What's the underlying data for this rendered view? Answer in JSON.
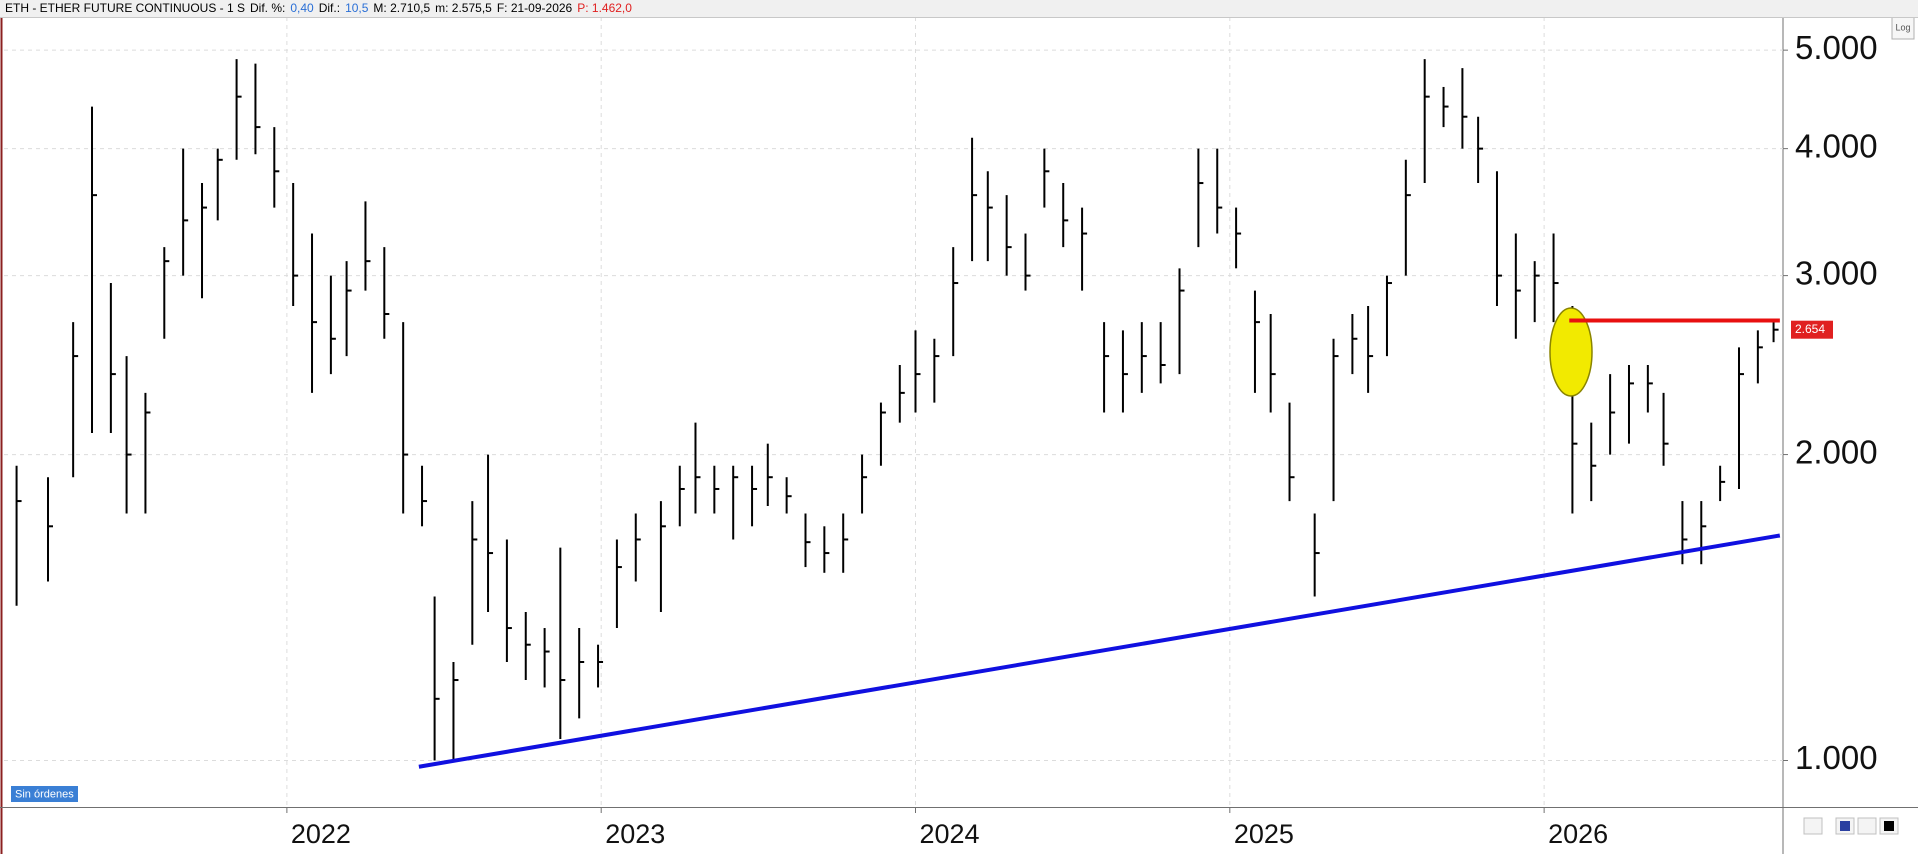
{
  "chart_data": {
    "type": "ohlc",
    "header": [
      {
        "text": "ETH - ETHER FUTURE CONTINUOUS -  1 S",
        "color": "#000000"
      },
      {
        "text": "Dif. %:",
        "color": "#000000"
      },
      {
        "text": "0,40",
        "color": "#2a6fd6"
      },
      {
        "text": "Dif.:",
        "color": "#000000"
      },
      {
        "text": "10,5",
        "color": "#2a6fd6"
      },
      {
        "text": "M: 2.710,5",
        "color": "#000000"
      },
      {
        "text": "m: 2.575,5",
        "color": "#000000"
      },
      {
        "text": "F: 21-09-2026",
        "color": "#000000"
      },
      {
        "text": "P: 1.462,0",
        "color": "#e02020"
      }
    ],
    "scale_label": "Log",
    "orders_label": "Sin órdenes",
    "log_scale": true,
    "grid": true,
    "color": "#000000",
    "xlim": [
      2021.1,
      2026.76
    ],
    "xticks": [
      2022,
      2023,
      2024,
      2025,
      2026
    ],
    "ylim": [
      900,
      5390
    ],
    "yticks": [
      {
        "value": 1000,
        "label": "1.000"
      },
      {
        "value": 2000,
        "label": "2.000"
      },
      {
        "value": 3000,
        "label": "3.000"
      },
      {
        "value": 4000,
        "label": "4.000"
      },
      {
        "value": 5000,
        "label": "5.000"
      }
    ],
    "x": [
      2021.14,
      2021.24,
      2021.32,
      2021.38,
      2021.44,
      2021.49,
      2021.55,
      2021.61,
      2021.67,
      2021.73,
      2021.78,
      2021.84,
      2021.9,
      2021.96,
      2022.02,
      2022.08,
      2022.14,
      2022.19,
      2022.25,
      2022.31,
      2022.37,
      2022.43,
      2022.47,
      2022.53,
      2022.59,
      2022.64,
      2022.7,
      2022.76,
      2022.82,
      2022.87,
      2022.93,
      2022.99,
      2023.05,
      2023.11,
      2023.19,
      2023.25,
      2023.3,
      2023.36,
      2023.42,
      2023.48,
      2023.53,
      2023.59,
      2023.65,
      2023.71,
      2023.77,
      2023.83,
      2023.89,
      2023.95,
      2024.0,
      2024.06,
      2024.12,
      2024.18,
      2024.23,
      2024.29,
      2024.35,
      2024.41,
      2024.47,
      2024.53,
      2024.6,
      2024.66,
      2024.72,
      2024.78,
      2024.84,
      2024.9,
      2024.96,
      2025.02,
      2025.08,
      2025.13,
      2025.19,
      2025.27,
      2025.33,
      2025.39,
      2025.44,
      2025.5,
      2025.56,
      2025.62,
      2025.68,
      2025.74,
      2025.79,
      2025.85,
      2025.91,
      2025.97,
      2026.03,
      2026.09,
      2026.15,
      2026.21,
      2026.27,
      2026.33,
      2026.38,
      2026.44,
      2026.5,
      2026.56,
      2026.62,
      2026.68,
      2026.73
    ],
    "high": [
      1950,
      1900,
      2700,
      4400,
      2950,
      2500,
      2300,
      3200,
      4000,
      3700,
      4000,
      4900,
      4850,
      4200,
      3700,
      3300,
      3000,
      3100,
      3550,
      3200,
      2700,
      1950,
      1450,
      1250,
      1800,
      2000,
      1650,
      1400,
      1350,
      1620,
      1350,
      1300,
      1650,
      1750,
      1800,
      1950,
      2150,
      1950,
      1950,
      1950,
      2050,
      1900,
      1750,
      1700,
      1750,
      2000,
      2250,
      2450,
      2650,
      2600,
      3200,
      4100,
      3800,
      3600,
      3300,
      4000,
      3700,
      3500,
      2700,
      2650,
      2700,
      2700,
      3050,
      4000,
      4000,
      3500,
      2900,
      2750,
      2250,
      1750,
      2600,
      2750,
      2800,
      3000,
      3900,
      4900,
      4600,
      4800,
      4300,
      3800,
      3300,
      3100,
      3300,
      2800,
      2150,
      2400,
      2450,
      2450,
      2300,
      1800,
      1800,
      1950,
      2550,
      2650,
      2710
    ],
    "low": [
      1420,
      1500,
      1900,
      2100,
      2100,
      1750,
      1750,
      2600,
      3000,
      2850,
      3400,
      3900,
      3950,
      3500,
      2800,
      2300,
      2400,
      2500,
      2900,
      2600,
      1750,
      1700,
      1000,
      1000,
      1300,
      1400,
      1250,
      1200,
      1180,
      1050,
      1100,
      1180,
      1350,
      1500,
      1400,
      1700,
      1750,
      1750,
      1650,
      1700,
      1780,
      1750,
      1550,
      1530,
      1530,
      1750,
      1950,
      2150,
      2200,
      2250,
      2500,
      3100,
      3100,
      3000,
      2900,
      3500,
      3200,
      2900,
      2200,
      2200,
      2300,
      2350,
      2400,
      3200,
      3300,
      3050,
      2300,
      2200,
      1800,
      1450,
      1800,
      2400,
      2300,
      2500,
      3000,
      3700,
      4200,
      4000,
      3700,
      2800,
      2600,
      2700,
      2700,
      1750,
      1800,
      2000,
      2050,
      2200,
      1950,
      1560,
      1560,
      1800,
      1850,
      2350,
      2580
    ],
    "close": [
      1800,
      1700,
      2500,
      3600,
      2400,
      2000,
      2200,
      3100,
      3400,
      3500,
      3900,
      4500,
      4200,
      3800,
      3000,
      2700,
      2600,
      2900,
      3100,
      2750,
      2000,
      1800,
      1150,
      1200,
      1650,
      1600,
      1350,
      1300,
      1280,
      1200,
      1250,
      1250,
      1550,
      1650,
      1700,
      1850,
      1900,
      1850,
      1900,
      1850,
      1900,
      1820,
      1640,
      1600,
      1650,
      1900,
      2200,
      2300,
      2400,
      2500,
      2950,
      3600,
      3500,
      3200,
      3000,
      3800,
      3400,
      3300,
      2500,
      2400,
      2500,
      2450,
      2900,
      3700,
      3500,
      3300,
      2700,
      2400,
      1900,
      1600,
      2500,
      2600,
      2500,
      2950,
      3600,
      4500,
      4400,
      4300,
      4000,
      3000,
      2900,
      3000,
      2950,
      2050,
      1950,
      2200,
      2350,
      2350,
      2050,
      1650,
      1700,
      1880,
      2400,
      2550,
      2654
    ],
    "lines": [
      {
        "color": "#1010e0",
        "x": [
          2022.42,
          2026.75
        ],
        "y": [
          986,
          1665
        ]
      },
      {
        "color": "#e81010",
        "x": [
          2026.08,
          2026.75
        ],
        "y": [
          2710,
          2710
        ]
      }
    ],
    "last_label": {
      "value": 2654,
      "label": "2.654",
      "color": "#e02020"
    }
  }
}
